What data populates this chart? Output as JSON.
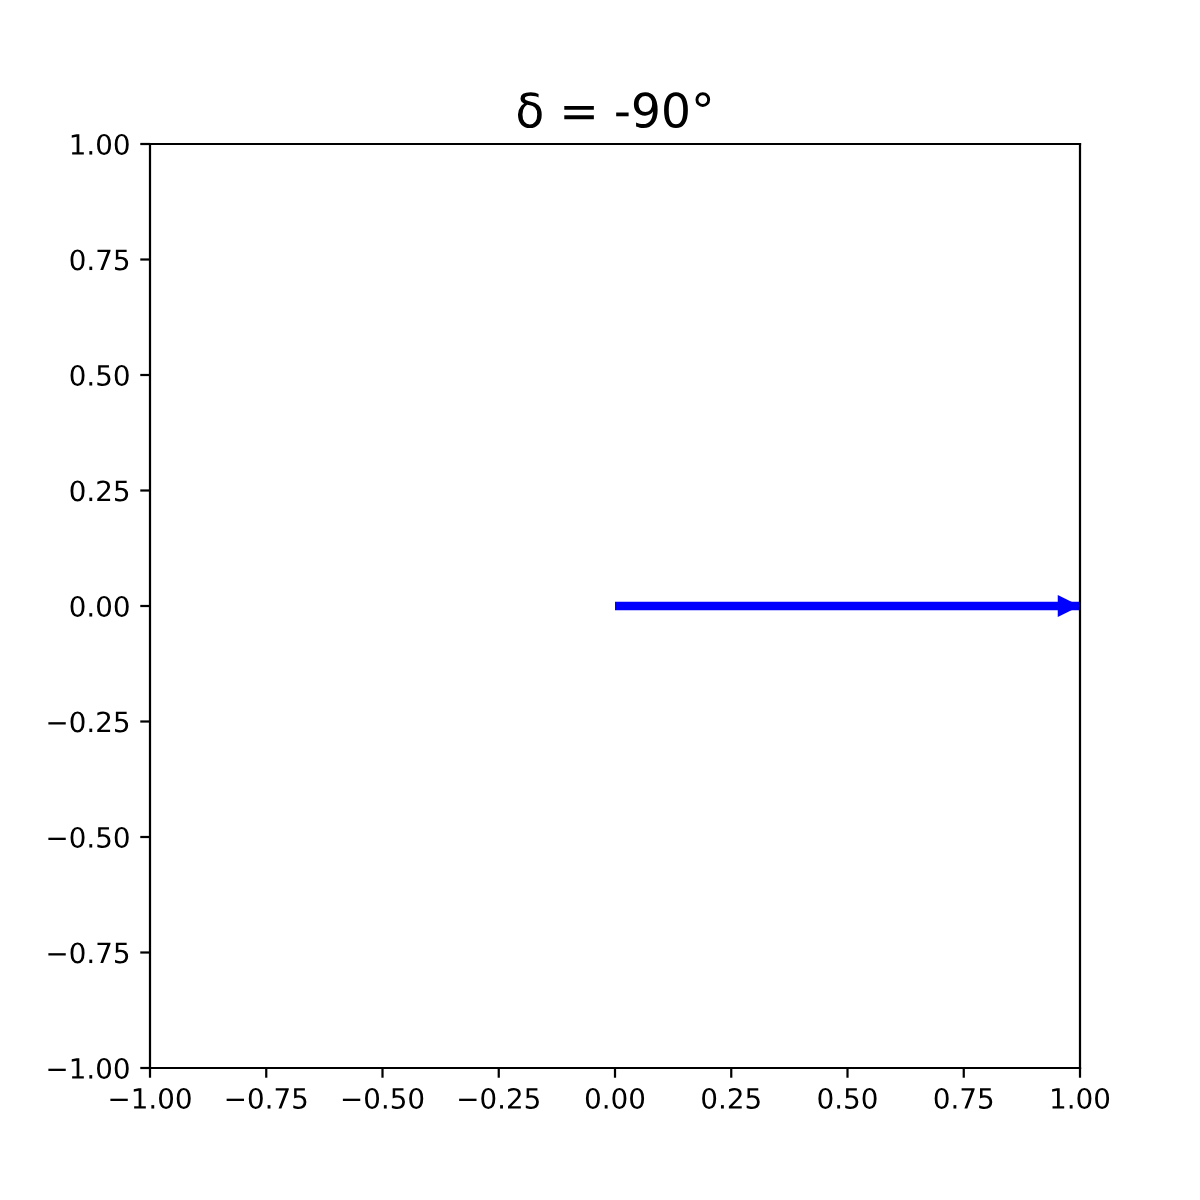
{
  "chart_data": {
    "type": "line",
    "title": "δ = -90°",
    "series": [
      {
        "x": [
          0,
          1
        ],
        "values": [
          0,
          0
        ],
        "color": "#0000ff"
      }
    ],
    "xlim": [
      -1,
      1
    ],
    "ylim": [
      -1,
      1
    ],
    "xticks": [
      {
        "value": -1,
        "label": "−1.00"
      },
      {
        "value": -0.75,
        "label": "−0.75"
      },
      {
        "value": -0.5,
        "label": "−0.50"
      },
      {
        "value": -0.25,
        "label": "−0.25"
      },
      {
        "value": 0,
        "label": "0.00"
      },
      {
        "value": 0.25,
        "label": "0.25"
      },
      {
        "value": 0.5,
        "label": "0.50"
      },
      {
        "value": 0.75,
        "label": "0.75"
      },
      {
        "value": 1,
        "label": "1.00"
      }
    ],
    "yticks": [
      {
        "value": -1,
        "label": "−1.00"
      },
      {
        "value": -0.75,
        "label": "−0.75"
      },
      {
        "value": -0.5,
        "label": "−0.50"
      },
      {
        "value": -0.25,
        "label": "−0.25"
      },
      {
        "value": 0,
        "label": "0.00"
      },
      {
        "value": 0.25,
        "label": "0.25"
      },
      {
        "value": 0.5,
        "label": "0.50"
      },
      {
        "value": 0.75,
        "label": "0.75"
      },
      {
        "value": 1,
        "label": "1.00"
      }
    ],
    "grid": false,
    "legend": false
  }
}
